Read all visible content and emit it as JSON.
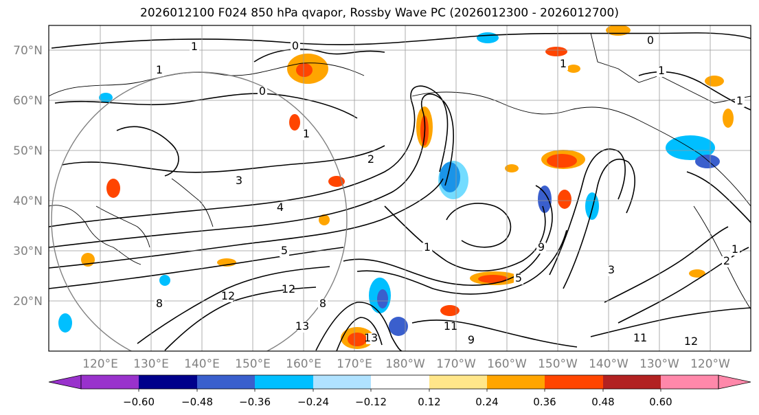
{
  "title": "2026012100 F024 850 hPa qvapor, Rossby Wave PC (2026012300 - 2026012700)",
  "map": {
    "lat_labels": [
      "70°N",
      "60°N",
      "50°N",
      "40°N",
      "30°N",
      "20°N"
    ],
    "lon_labels": [
      "120°E",
      "130°E",
      "140°E",
      "150°E",
      "160°E",
      "170°E",
      "180°W",
      "170°W",
      "160°W",
      "150°W",
      "140°W",
      "130°W",
      "120°W"
    ],
    "gridline_color": "#999999",
    "tick_label_color": "#808080",
    "contour_color": "#000000",
    "contour_labels": [
      "1",
      "0",
      "1",
      "0",
      "1",
      "1",
      "3",
      "4",
      "5",
      "2",
      "1",
      "9",
      "12",
      "12",
      "13",
      "11",
      "9",
      "8",
      "8",
      "13",
      "11",
      "12",
      "3",
      "5",
      "2",
      "1",
      "0",
      "1",
      "1"
    ]
  },
  "colorbar": {
    "tick_labels": [
      "−0.60",
      "−0.48",
      "−0.36",
      "−0.24",
      "−0.12",
      "0.12",
      "0.24",
      "0.36",
      "0.48",
      "0.60"
    ],
    "colors": [
      "#9932cc",
      "#00008b",
      "#3a5fcd",
      "#00bfff",
      "#b0e2ff",
      "#ffffff",
      "#ffe68a",
      "#ffa500",
      "#ff4500",
      "#b22222",
      "#ff88aa"
    ],
    "extend": "both"
  }
}
